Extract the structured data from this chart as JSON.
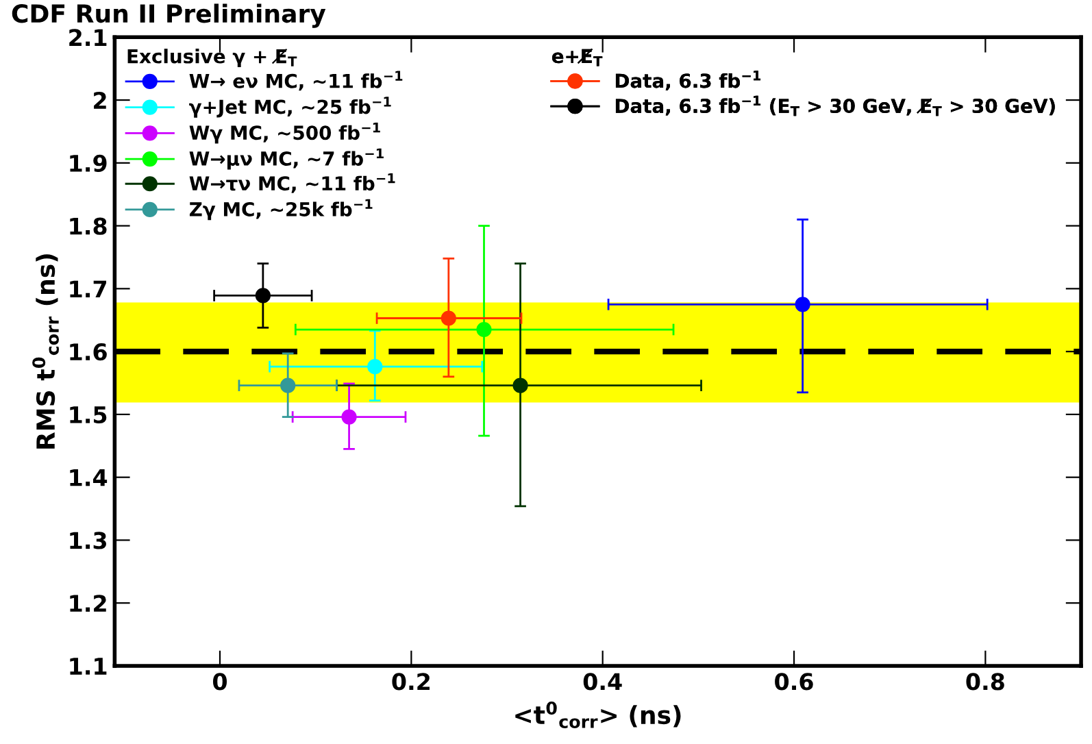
{
  "chart_data": {
    "type": "scatter",
    "title": "CDF Run II Preliminary",
    "xlabel": "<t$^{0}$$_{corr}$> (ns)",
    "ylabel": "RMS t$^{0}$$_{corr}$ (ns)",
    "legend_title": [
      "Exclusive γ + E̸$_{T}$",
      "e+E̸$_{T}$"
    ],
    "series": [
      {
        "name": "W→ eν MC, ~11 fb$^{−1}$",
        "color": "#0000ff",
        "x": [
          0.609
        ],
        "values": [
          1.675
        ],
        "xerrors": [
          [
            0.406,
            0.802
          ]
        ],
        "errors": [
          [
            1.535,
            1.81
          ]
        ]
      },
      {
        "name": "γ+Jet MC, ~25 fb$^{−1}$",
        "color": "#00ffff",
        "x": [
          0.162
        ],
        "values": [
          1.576
        ],
        "xerrors": [
          [
            0.052,
            0.274
          ]
        ],
        "errors": [
          [
            1.522,
            1.633
          ]
        ]
      },
      {
        "name": "Wγ MC, ~500 fb$^{−1}$",
        "color": "#cc00ff",
        "x": [
          0.135
        ],
        "values": [
          1.496
        ],
        "xerrors": [
          [
            0.076,
            0.194
          ]
        ],
        "errors": [
          [
            1.445,
            1.549
          ]
        ]
      },
      {
        "name": "W→μν MC, ~7 fb$^{−1}$",
        "color": "#00ff00",
        "x": [
          0.276
        ],
        "values": [
          1.635
        ],
        "xerrors": [
          [
            0.079,
            0.474
          ]
        ],
        "errors": [
          [
            1.466,
            1.8
          ]
        ]
      },
      {
        "name": "W→τν MC, ~11 fb$^{−1}$",
        "color": "#003300",
        "x": [
          0.314
        ],
        "values": [
          1.546
        ],
        "xerrors": [
          [
            0.122,
            0.503
          ]
        ],
        "errors": [
          [
            1.354,
            1.74
          ]
        ]
      },
      {
        "name": "Zγ MC, ~25k fb$^{−1}$",
        "color": "#339999",
        "x": [
          0.071
        ],
        "values": [
          1.546
        ],
        "xerrors": [
          [
            0.02,
            0.122
          ]
        ],
        "errors": [
          [
            1.496,
            1.597
          ]
        ]
      },
      {
        "name": "Data, 6.3 fb$^{−1}$",
        "color": "#ff3300",
        "x": [
          0.239
        ],
        "values": [
          1.653
        ],
        "xerrors": [
          [
            0.164,
            0.315
          ]
        ],
        "errors": [
          [
            1.56,
            1.748
          ]
        ]
      },
      {
        "name": "Data, 6.3 fb$^{−1}$ (E$_{T}$ > 30 GeV, E̸$_{T}$ > 30 GeV)",
        "color": "#000000",
        "x": [
          0.045
        ],
        "values": [
          1.689
        ],
        "xerrors": [
          [
            -0.006,
            0.096
          ]
        ],
        "errors": [
          [
            1.638,
            1.74
          ]
        ]
      }
    ],
    "ref_lines": [
      {
        "axis": "y",
        "value": 1.6,
        "color": "#000000",
        "line_style": "dashed"
      }
    ],
    "bands": [
      {
        "axis": "y",
        "from": 1.519,
        "to": 1.678,
        "color": "#ffff00"
      }
    ],
    "xlim": [
      -0.11,
      0.9
    ],
    "xticks": [
      0,
      0.2,
      0.4,
      0.6,
      0.8
    ],
    "ylim": [
      1.1,
      2.1
    ],
    "yticks": [
      1.1,
      1.2,
      1.3,
      1.4,
      1.5,
      1.6,
      1.7,
      1.8,
      1.9,
      2,
      2.1
    ],
    "grid": false,
    "legend": "top left",
    "marker": "circle"
  }
}
